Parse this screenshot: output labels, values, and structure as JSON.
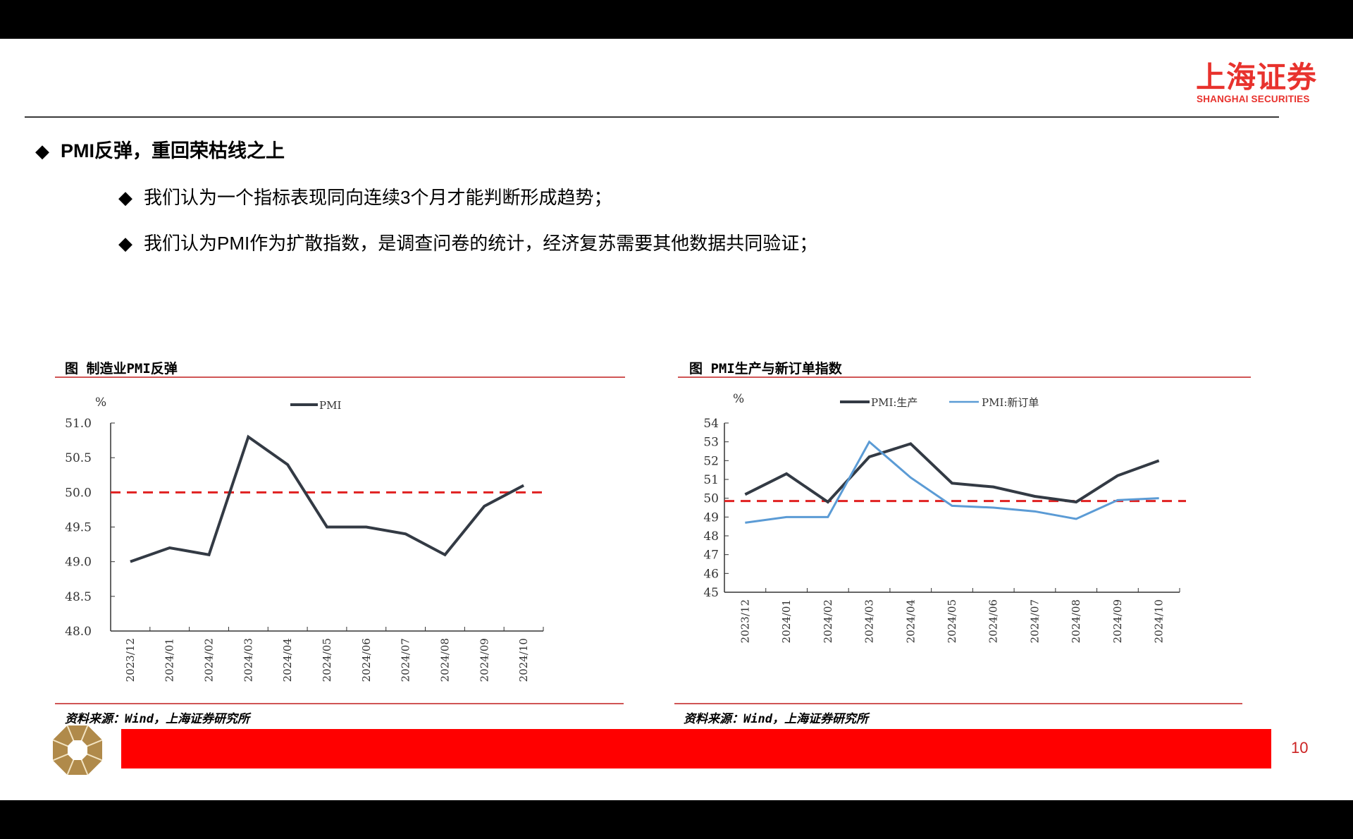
{
  "brand": {
    "name_cn": "上海证券",
    "name_en": "SHANGHAI SECURITIES",
    "color": "#e8322d"
  },
  "heading": {
    "bullet": "◆",
    "latin": "PMI",
    "text": "反弹，重回荣枯线之上"
  },
  "bullets": [
    {
      "marker": "◆",
      "pre": "我们认为一个指标表现同向连续",
      "latin": "3",
      "post": "个月才能判断形成趋势；"
    },
    {
      "marker": "◆",
      "pre": "我们认为",
      "latin": "PMI",
      "post": "作为扩散指数，是调查问卷的统计，经济复苏需要其他数据共同验证；"
    }
  ],
  "charts": {
    "left": {
      "title": "图  制造业PMI反弹",
      "unit": "%",
      "legend": [
        "PMI"
      ],
      "yticks": [
        "51.0",
        "50.5",
        "50.0",
        "49.5",
        "49.0",
        "48.5",
        "48.0"
      ],
      "source": "资料来源：Wind，上海证券研究所"
    },
    "right": {
      "title": "图  PMI生产与新订单指数",
      "unit": "%",
      "legend": [
        "PMI:生产",
        "PMI:新订单"
      ],
      "yticks": [
        "54",
        "53",
        "52",
        "51",
        "50",
        "49",
        "48",
        "47",
        "46",
        "45"
      ],
      "source": "资料来源：Wind，上海证券研究所"
    }
  },
  "chart_data": [
    {
      "type": "line",
      "title": "图 制造业PMI反弹",
      "xlabel": "",
      "ylabel": "%",
      "categories": [
        "2023/12",
        "2024/01",
        "2024/02",
        "2024/03",
        "2024/04",
        "2024/05",
        "2024/06",
        "2024/07",
        "2024/08",
        "2024/09",
        "2024/10"
      ],
      "series": [
        {
          "name": "PMI",
          "color": "#333a44",
          "values": [
            49.0,
            49.2,
            49.1,
            50.8,
            50.4,
            49.5,
            49.5,
            49.4,
            49.1,
            49.8,
            50.1
          ]
        }
      ],
      "reference_line": {
        "value": 50.0,
        "style": "dashed",
        "color": "#e02020"
      },
      "ylim": [
        48.0,
        51.0
      ],
      "yticks": [
        48.0,
        48.5,
        49.0,
        49.5,
        50.0,
        50.5,
        51.0
      ],
      "grid": false,
      "legend_position": "top-center"
    },
    {
      "type": "line",
      "title": "图 PMI生产与新订单指数",
      "xlabel": "",
      "ylabel": "%",
      "categories": [
        "2023/12",
        "2024/01",
        "2024/02",
        "2024/03",
        "2024/04",
        "2024/05",
        "2024/06",
        "2024/07",
        "2024/08",
        "2024/09",
        "2024/10"
      ],
      "series": [
        {
          "name": "PMI:生产",
          "color": "#333a44",
          "values": [
            50.2,
            51.3,
            49.8,
            52.2,
            52.9,
            50.8,
            50.6,
            50.1,
            49.8,
            51.2,
            52.0
          ]
        },
        {
          "name": "PMI:新订单",
          "color": "#5b9bd5",
          "values": [
            48.7,
            49.0,
            49.0,
            53.0,
            51.1,
            49.6,
            49.5,
            49.3,
            48.9,
            49.9,
            50.0
          ]
        }
      ],
      "reference_line": {
        "value": 49.85,
        "style": "dashed",
        "color": "#e02020"
      },
      "ylim": [
        45,
        54
      ],
      "yticks": [
        45,
        46,
        47,
        48,
        49,
        50,
        51,
        52,
        53,
        54
      ],
      "grid": false,
      "legend_position": "top-center"
    }
  ],
  "footer": {
    "page_number": "10",
    "bar_color": "#ff0000"
  }
}
